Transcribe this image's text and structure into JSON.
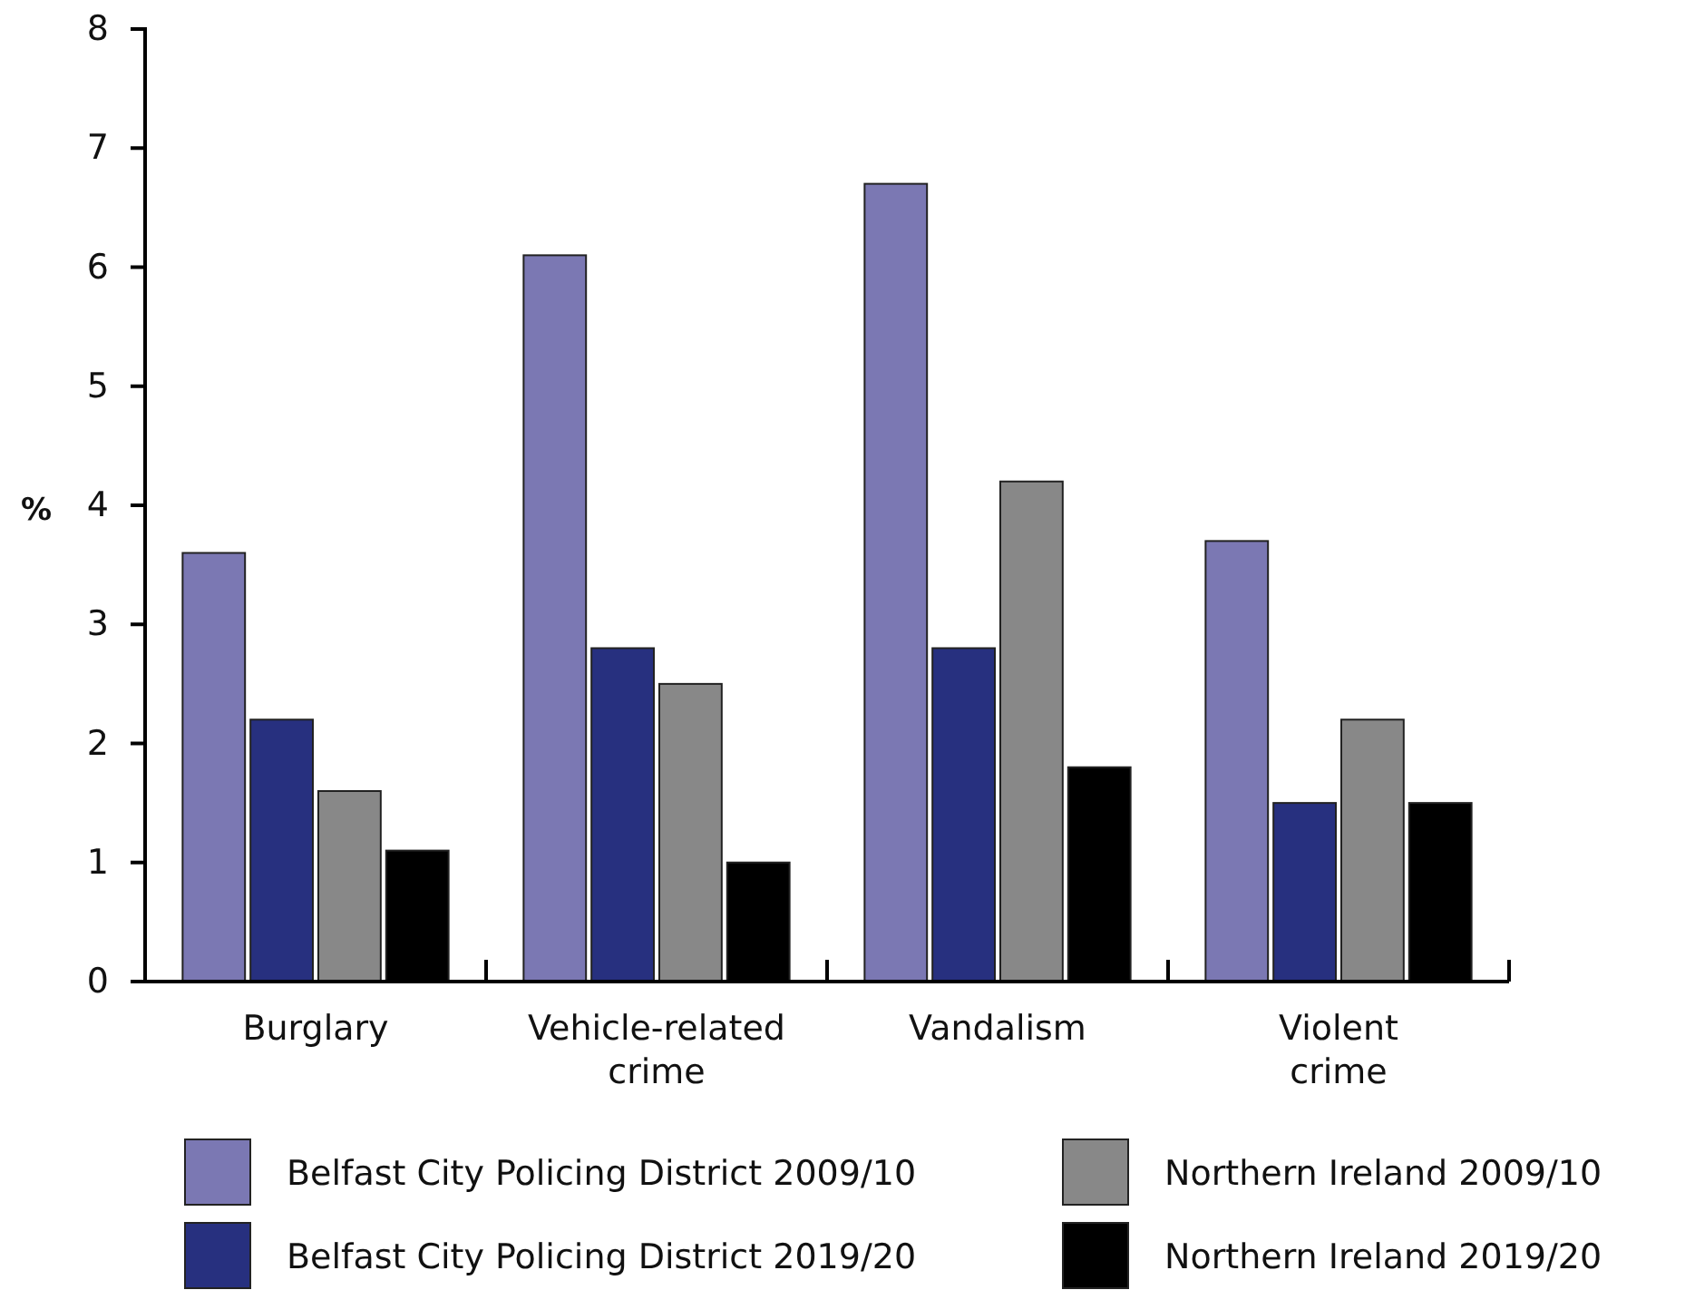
{
  "chart_data": {
    "type": "bar",
    "ylabel": "%",
    "categories": [
      "Burglary",
      "Vehicle-related crime",
      "Vandalism",
      "Violent crime"
    ],
    "series": [
      {
        "name": "Belfast City Policing District 2009/10",
        "color": "#7b78b3",
        "values": [
          3.6,
          6.1,
          6.7,
          3.7
        ]
      },
      {
        "name": "Belfast City Policing District 2019/20",
        "color": "#27307f",
        "values": [
          2.2,
          2.8,
          2.8,
          1.5
        ]
      },
      {
        "name": "Northern Ireland 2009/10",
        "color": "#888888",
        "values": [
          1.6,
          2.5,
          4.2,
          2.2
        ]
      },
      {
        "name": "Northern Ireland 2019/20",
        "color": "#000000",
        "values": [
          1.1,
          1.0,
          1.8,
          1.5
        ]
      }
    ],
    "ylim": [
      0,
      8
    ],
    "yticks": [
      0,
      1,
      2,
      3,
      4,
      5,
      6,
      7,
      8
    ],
    "grid": false,
    "legend": "bottom"
  }
}
